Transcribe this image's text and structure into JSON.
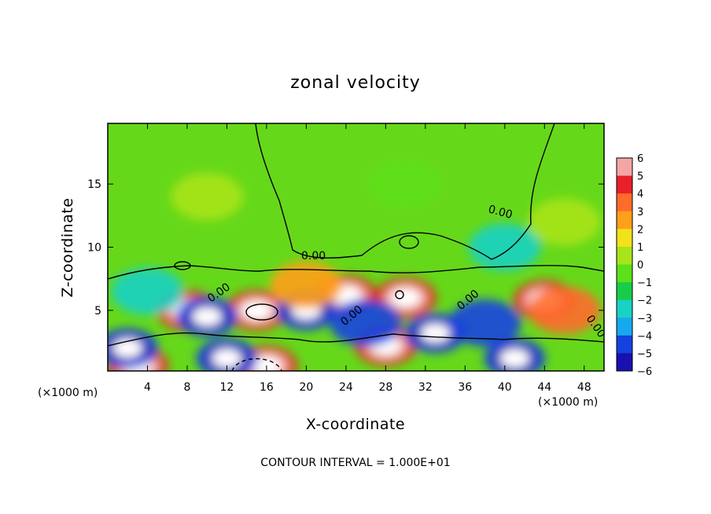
{
  "chart_data": {
    "type": "heatmap",
    "title": "zonal velocity",
    "xlabel": "X-coordinate",
    "ylabel": "Z-coordinate",
    "x_unit_note": "(×1000 m)",
    "x_unit_note_right": "(×1000 m)",
    "xlim": [
      0,
      50
    ],
    "ylim": [
      0.2,
      19.8
    ],
    "x_ticks": [
      4,
      8,
      12,
      16,
      20,
      24,
      28,
      32,
      36,
      40,
      44,
      48
    ],
    "y_ticks": [
      5,
      10,
      15
    ],
    "colorbar": {
      "min": -6,
      "max": 6,
      "labels": [
        "6",
        "5",
        "4",
        "3",
        "2",
        "1",
        "0",
        "−1",
        "−2",
        "−3",
        "−4",
        "−5",
        "−6"
      ],
      "colors": [
        "#f4a6a6",
        "#e8202a",
        "#ff6b2b",
        "#ffa01a",
        "#f2e21a",
        "#a8e41a",
        "#5ce01a",
        "#18cc4a",
        "#19d2c4",
        "#18a8f0",
        "#1442e0",
        "#1a10b0",
        "#8a1ac0"
      ]
    },
    "contour_labels": [
      "0.00",
      "0.00",
      "0.00",
      "0.00",
      "0.00",
      "0.00"
    ],
    "footnote": "CONTOUR INTERVAL = 1.000E+01",
    "features": [
      {
        "x": 15,
        "z": 5.0,
        "value": 8
      },
      {
        "x": 24,
        "z": 6.2,
        "value": 8
      },
      {
        "x": 30,
        "z": 6.0,
        "value": 8
      },
      {
        "x": 44,
        "z": 5.8,
        "value": 8
      },
      {
        "x": 8,
        "z": 5.0,
        "value": 7
      },
      {
        "x": 28,
        "z": 2.2,
        "value": 7
      },
      {
        "x": 16,
        "z": 0.6,
        "value": 7
      },
      {
        "x": 3,
        "z": 0.6,
        "value": 6
      },
      {
        "x": 10,
        "z": 4.5,
        "value": -5
      },
      {
        "x": 20,
        "z": 5.0,
        "value": -6
      },
      {
        "x": 26,
        "z": 4.0,
        "value": -4
      },
      {
        "x": 33,
        "z": 3.2,
        "value": -5
      },
      {
        "x": 38,
        "z": 4.0,
        "value": -4
      },
      {
        "x": 2,
        "z": 2.0,
        "value": -5
      },
      {
        "x": 12,
        "z": 1.2,
        "value": -5
      },
      {
        "x": 41,
        "z": 1.2,
        "value": -6
      },
      {
        "x": 40,
        "z": 10.0,
        "value": -2
      },
      {
        "x": 4,
        "z": 6.5,
        "value": -2
      },
      {
        "x": 46,
        "z": 5.0,
        "value": 4
      },
      {
        "x": 20,
        "z": 7.0,
        "value": 3
      },
      {
        "x": 10,
        "z": 14,
        "value": 1
      },
      {
        "x": 30,
        "z": 15,
        "value": 0
      },
      {
        "x": 46,
        "z": 12,
        "value": 1
      }
    ]
  }
}
